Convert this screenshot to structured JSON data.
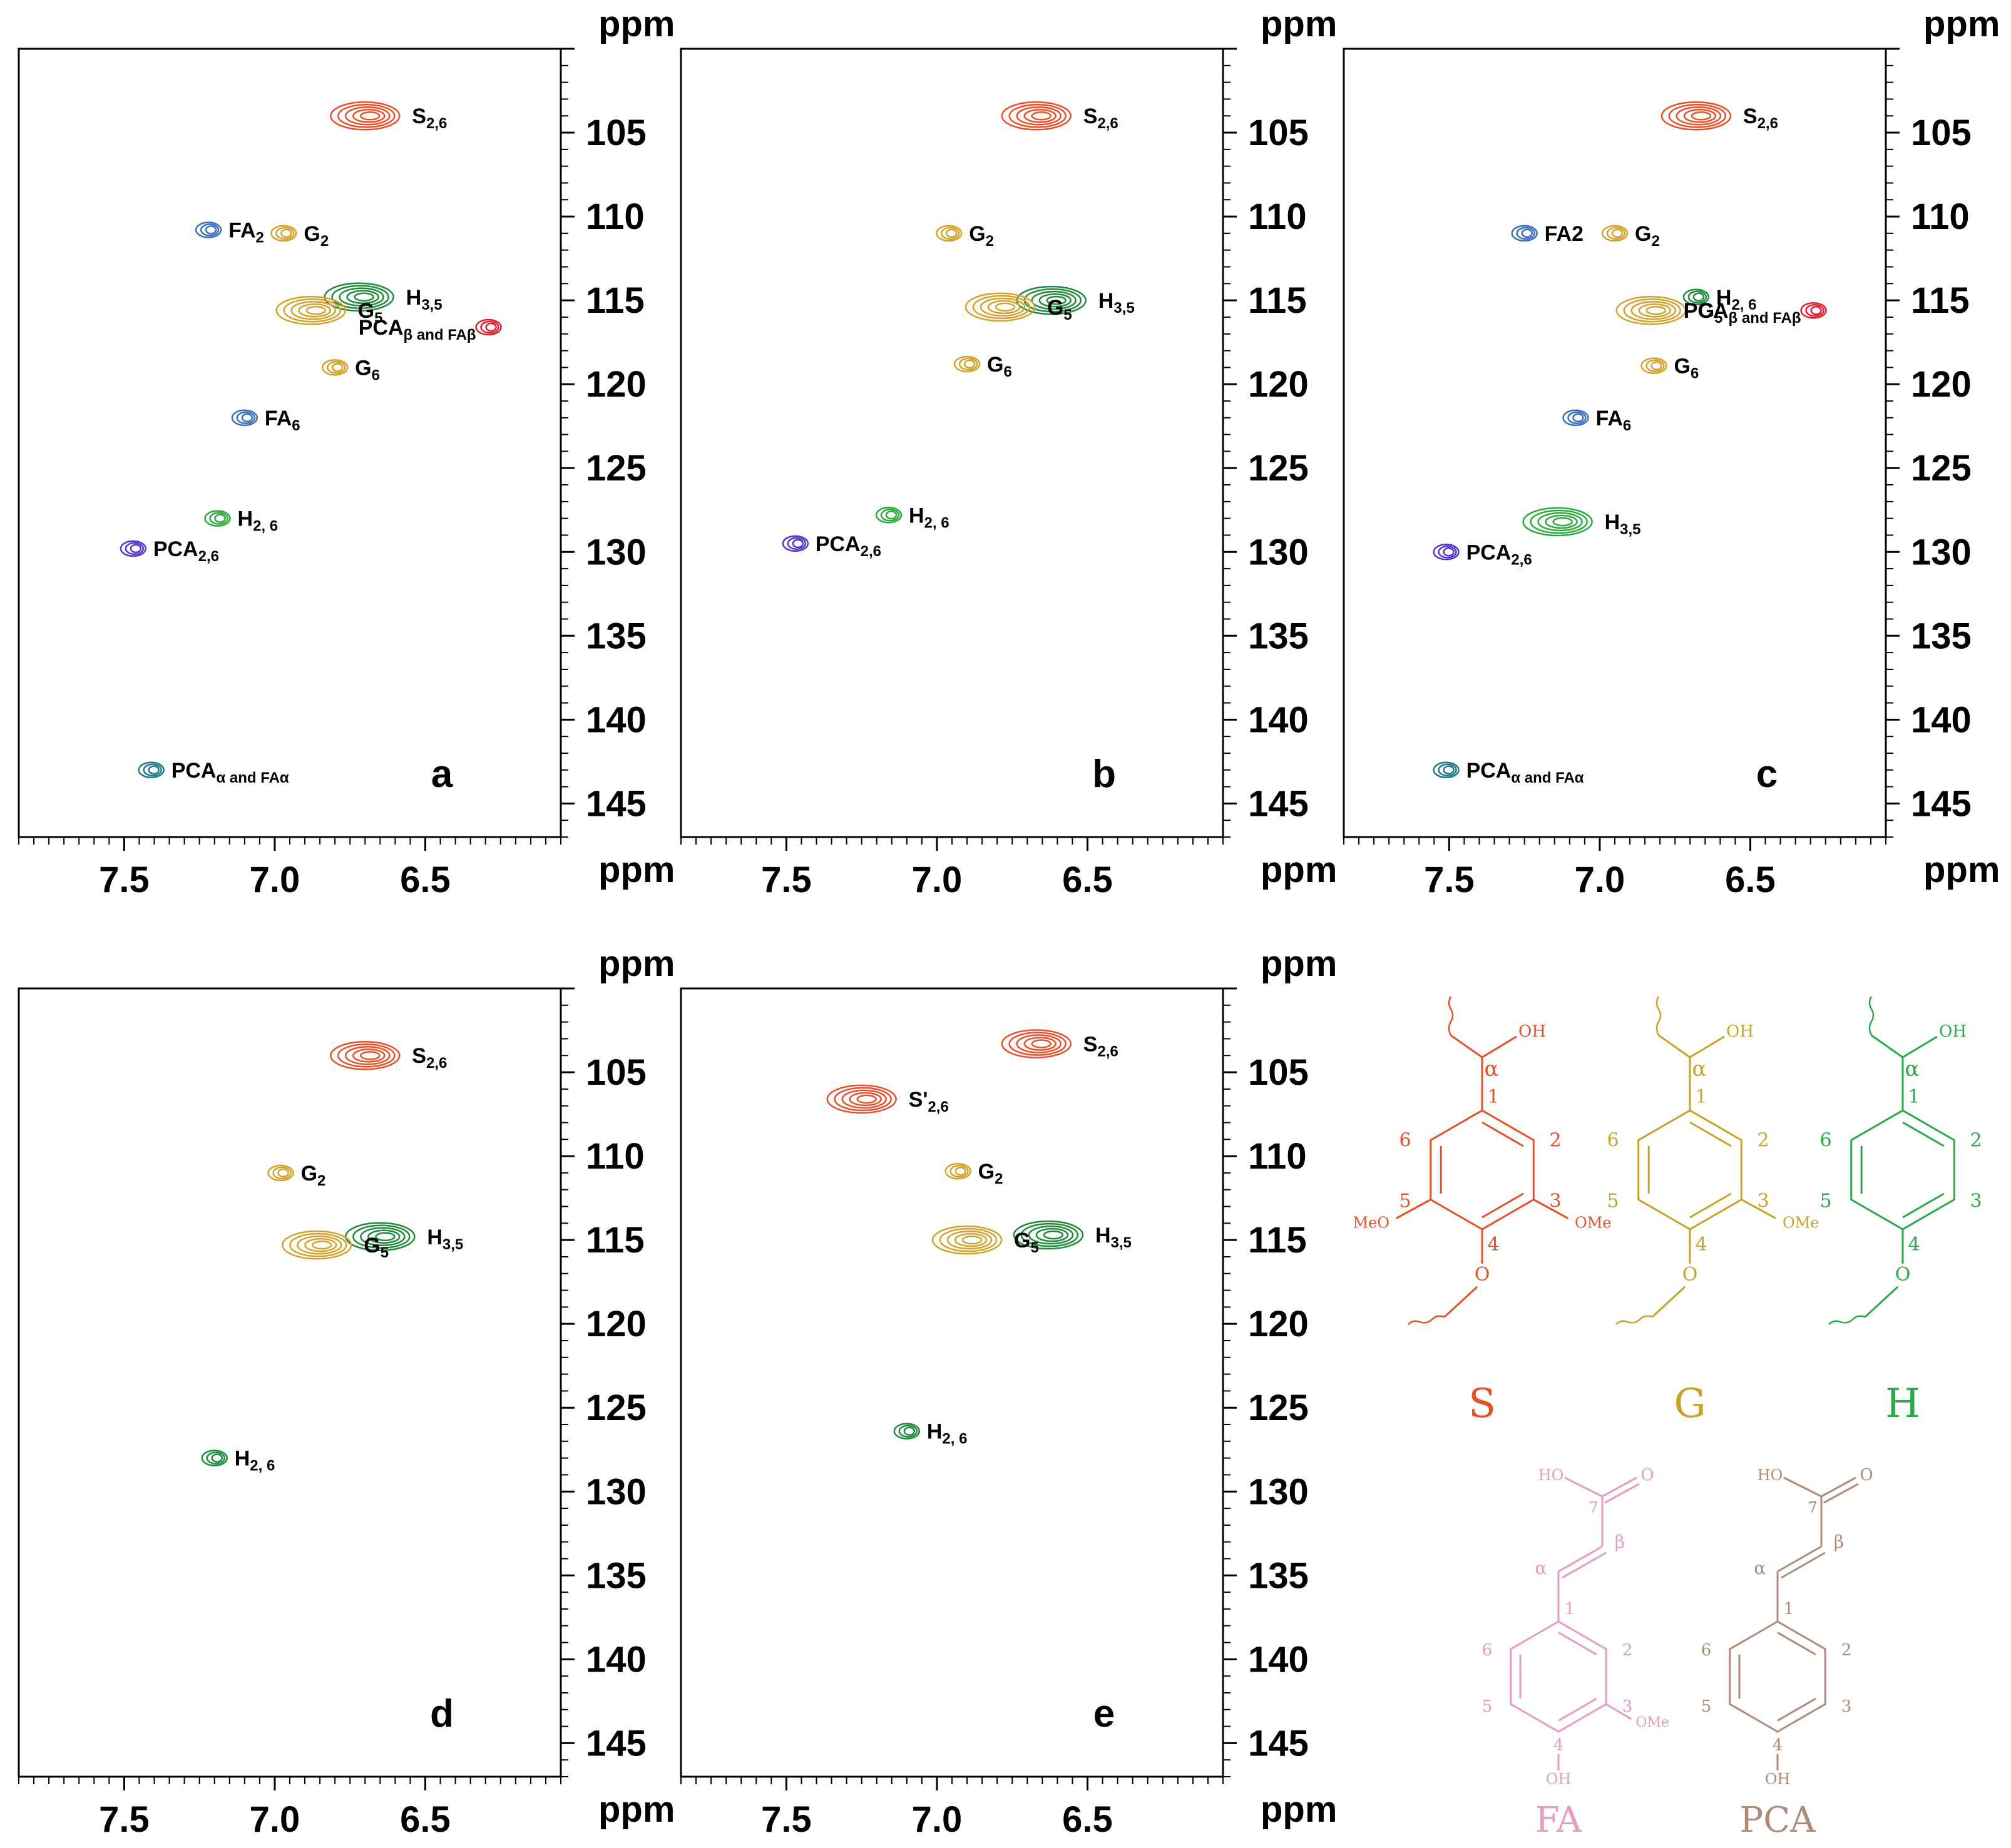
{
  "chart_data": {
    "type": "heatmap",
    "title": "",
    "xlabel": "ppm",
    "ylabel": "ppm",
    "xlim": [
      7.85,
      6.05
    ],
    "ylim": [
      100,
      147
    ],
    "x_ticks": [
      "7.5",
      "7.0",
      "6.5"
    ],
    "y_ticks": [
      "105",
      "110",
      "115",
      "120",
      "125",
      "130",
      "135",
      "140",
      "145"
    ],
    "panels": [
      {
        "letter": "a",
        "peaks": [
          {
            "label": "S",
            "sub": "2,6",
            "x": 6.7,
            "y": 104.0,
            "color": "#e8502a"
          },
          {
            "label": "FA",
            "sub": "2",
            "x": 7.22,
            "y": 110.8,
            "color": "#3a6fc0"
          },
          {
            "label": "G",
            "sub": "2",
            "x": 6.97,
            "y": 111.0,
            "color": "#d4a22a"
          },
          {
            "label": "H",
            "sub": "3,5",
            "x": 6.72,
            "y": 114.8,
            "color": "#1e8a3a"
          },
          {
            "label": "G",
            "sub": "5",
            "x": 6.88,
            "y": 115.6,
            "color": "#d4a22a"
          },
          {
            "label": "PCA",
            "sub": "β and FA",
            "sub2": "β",
            "x": 6.29,
            "y": 116.6,
            "color": "#e02030"
          },
          {
            "label": "G",
            "sub": "6",
            "x": 6.8,
            "y": 119.0,
            "color": "#d4a22a"
          },
          {
            "label": "FA",
            "sub": "6",
            "x": 7.1,
            "y": 122.0,
            "color": "#3a6fc0"
          },
          {
            "label": "H",
            "sub": "2, 6",
            "x": 7.19,
            "y": 128.0,
            "color": "#2aaa3a"
          },
          {
            "label": "PCA",
            "sub": "2,6",
            "x": 7.47,
            "y": 129.8,
            "color": "#5533cc"
          },
          {
            "label": "PCA",
            "sub": "α and FA",
            "sub2": "α",
            "x": 7.41,
            "y": 143.0,
            "color": "#1e7a8a"
          }
        ]
      },
      {
        "letter": "b",
        "peaks": [
          {
            "label": "S",
            "sub": "2,6",
            "x": 6.67,
            "y": 104.0,
            "color": "#e8502a"
          },
          {
            "label": "G",
            "sub": "2",
            "x": 6.96,
            "y": 111.0,
            "color": "#d4a22a"
          },
          {
            "label": "H",
            "sub": "3,5",
            "x": 6.62,
            "y": 115.0,
            "color": "#1e8a3a"
          },
          {
            "label": "G",
            "sub": "5",
            "x": 6.79,
            "y": 115.4,
            "color": "#d4a22a"
          },
          {
            "label": "G",
            "sub": "6",
            "x": 6.9,
            "y": 118.8,
            "color": "#d4a22a"
          },
          {
            "label": "H",
            "sub": "2, 6",
            "x": 7.16,
            "y": 127.8,
            "color": "#2aaa3a"
          },
          {
            "label": "PCA",
            "sub": "2,6",
            "x": 7.47,
            "y": 129.5,
            "color": "#5533cc"
          }
        ]
      },
      {
        "letter": "c",
        "peaks": [
          {
            "label": "S",
            "sub": "2,6",
            "x": 6.68,
            "y": 104.0,
            "color": "#e8502a"
          },
          {
            "label": "FA2",
            "sub": "",
            "x": 7.25,
            "y": 111.0,
            "color": "#3a6fc0"
          },
          {
            "label": "G",
            "sub": "2",
            "x": 6.95,
            "y": 111.0,
            "color": "#d4a22a"
          },
          {
            "label": "H",
            "sub": "2, 6",
            "x": 6.68,
            "y": 114.8,
            "color": "#1e8a3a"
          },
          {
            "label": "G",
            "sub": "5",
            "x": 6.83,
            "y": 115.6,
            "color": "#d4a22a"
          },
          {
            "label": "PCA",
            "sub": "β and FA",
            "sub2": "β",
            "x": 6.29,
            "y": 115.6,
            "color": "#e02030"
          },
          {
            "label": "G",
            "sub": "6",
            "x": 6.82,
            "y": 118.9,
            "color": "#d4a22a"
          },
          {
            "label": "FA",
            "sub": "6",
            "x": 7.08,
            "y": 122.0,
            "color": "#3a6fc0"
          },
          {
            "label": "H",
            "sub": "3,5",
            "x": 7.14,
            "y": 128.2,
            "color": "#2aaa3a"
          },
          {
            "label": "PCA",
            "sub": "2,6",
            "x": 7.51,
            "y": 130.0,
            "color": "#5533cc"
          },
          {
            "label": "PCA",
            "sub": "α and FA",
            "sub2": "α",
            "x": 7.51,
            "y": 143.0,
            "color": "#1e7a8a"
          }
        ]
      },
      {
        "letter": "d",
        "peaks": [
          {
            "label": "S",
            "sub": "2,6",
            "x": 6.7,
            "y": 104.0,
            "color": "#e8502a"
          },
          {
            "label": "G",
            "sub": "2",
            "x": 6.98,
            "y": 111.0,
            "color": "#d4a22a"
          },
          {
            "label": "H",
            "sub": "3,5",
            "x": 6.65,
            "y": 114.8,
            "color": "#1e8a3a"
          },
          {
            "label": "G",
            "sub": "5",
            "x": 6.86,
            "y": 115.3,
            "color": "#d4a22a"
          },
          {
            "label": "H",
            "sub": "2, 6",
            "x": 7.2,
            "y": 128.0,
            "color": "#1e8a3a"
          }
        ]
      },
      {
        "letter": "e",
        "peaks": [
          {
            "label": "S",
            "sub": "2,6",
            "x": 6.67,
            "y": 103.3,
            "color": "#e8502a"
          },
          {
            "label": "S'",
            "sub": "2,6",
            "x": 7.25,
            "y": 106.6,
            "color": "#e8502a"
          },
          {
            "label": "G",
            "sub": "2",
            "x": 6.93,
            "y": 110.9,
            "color": "#d4a22a"
          },
          {
            "label": "H",
            "sub": "3,5",
            "x": 6.63,
            "y": 114.7,
            "color": "#1e8a3a"
          },
          {
            "label": "G",
            "sub": "5",
            "x": 6.9,
            "y": 115.0,
            "color": "#d4a22a"
          },
          {
            "label": "H",
            "sub": "2, 6",
            "x": 7.1,
            "y": 126.4,
            "color": "#1e8a3a"
          }
        ]
      }
    ]
  },
  "structures": {
    "S": {
      "name": "S",
      "color": "#e8502a",
      "ring_numbers": [
        "1",
        "2",
        "3",
        "4",
        "5",
        "6"
      ],
      "alpha": "α",
      "oh": "OH",
      "ome": "OMe",
      "meo": "MeO",
      "o": "O"
    },
    "G": {
      "name": "G",
      "color": "#c9a227",
      "ring_numbers": [
        "1",
        "2",
        "3",
        "4",
        "5",
        "6"
      ],
      "alpha": "α",
      "oh": "OH",
      "ome": "OMe",
      "o": "O"
    },
    "H": {
      "name": "H",
      "color": "#2aaa48",
      "ring_numbers": [
        "1",
        "2",
        "3",
        "4",
        "5",
        "6"
      ],
      "alpha": "α",
      "oh": "OH",
      "o": "O"
    },
    "FA": {
      "name": "FA",
      "color": "#e89ac0",
      "ring_numbers": [
        "1",
        "2",
        "3",
        "4",
        "5",
        "6"
      ],
      "alpha": "α",
      "beta": "β",
      "seven": "7",
      "ho": "HO",
      "o": "O",
      "ome": "OMe",
      "oh": "OH"
    },
    "PCA": {
      "name": "PCA",
      "color": "#b08a78",
      "ring_numbers": [
        "1",
        "2",
        "3",
        "4",
        "5",
        "6"
      ],
      "alpha": "α",
      "beta": "β",
      "seven": "7",
      "ho": "HO",
      "o": "O",
      "oh": "OH"
    }
  }
}
